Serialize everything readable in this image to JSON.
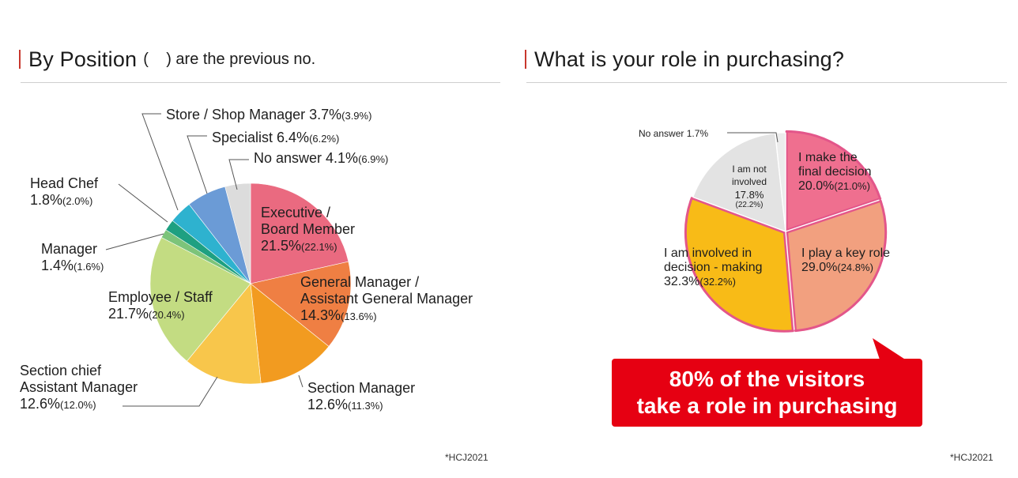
{
  "left": {
    "title": "By Position",
    "note_open": "(",
    "note_close": ") are the previous no.",
    "source": "*HCJ2021",
    "chart_data": {
      "type": "pie",
      "title": "By Position",
      "unit": "%",
      "slices": [
        {
          "label_lines": [
            "Executive /",
            "Board Member"
          ],
          "value": 21.5,
          "previous": 22.1,
          "value_text": "21.5%",
          "prev_text": "(22.1%)",
          "color": "#ea6a80"
        },
        {
          "label_lines": [
            "General Manager /",
            "Assistant General Manager"
          ],
          "value": 14.3,
          "previous": 13.6,
          "value_text": "14.3%",
          "prev_text": "(13.6%)",
          "color": "#ef7f43"
        },
        {
          "label_lines": [
            "Section Manager"
          ],
          "value": 12.6,
          "previous": 11.3,
          "value_text": "12.6%",
          "prev_text": "(11.3%)",
          "color": "#f29b20"
        },
        {
          "label_lines": [
            "Section chief",
            "Assistant Manager"
          ],
          "value": 12.6,
          "previous": 12.0,
          "value_text": "12.6%",
          "prev_text": "(12.0%)",
          "color": "#f8c64b"
        },
        {
          "label_lines": [
            "Employee / Staff"
          ],
          "value": 21.7,
          "previous": 20.4,
          "value_text": "21.7%",
          "prev_text": "(20.4%)",
          "color": "#c3dc82"
        },
        {
          "label_lines": [
            "Manager"
          ],
          "value": 1.4,
          "previous": 1.6,
          "value_text": "1.4%",
          "prev_text": "(1.6%)",
          "color": "#7cc47a"
        },
        {
          "label_lines": [
            "Head Chef"
          ],
          "value": 1.8,
          "previous": 2.0,
          "value_text": "1.8%",
          "prev_text": "(2.0%)",
          "color": "#1ea081"
        },
        {
          "label_lines": [
            "Store / Shop Manager"
          ],
          "value": 3.7,
          "previous": 3.9,
          "value_text": "3.7%",
          "prev_text": "(3.9%)",
          "color": "#2eb2cf"
        },
        {
          "label_lines": [
            "Specialist"
          ],
          "value": 6.4,
          "previous": 6.2,
          "value_text": "6.4%",
          "prev_text": "(6.2%)",
          "color": "#6b9bd6"
        },
        {
          "label_lines": [
            "No answer"
          ],
          "value": 4.1,
          "previous": 6.9,
          "value_text": "4.1%",
          "prev_text": "(6.9%)",
          "color": "#dcdcdc"
        }
      ]
    }
  },
  "right": {
    "title": "What is your role in purchasing?",
    "source": "*HCJ2021",
    "banner_line1": "80% of the visitors",
    "banner_line2": "take a role in purchasing",
    "chart_data": {
      "type": "pie",
      "title": "What is your role in purchasing?",
      "unit": "%",
      "slices": [
        {
          "label_lines": [
            "I make the",
            "final decision"
          ],
          "value": 20.0,
          "previous": 21.0,
          "value_text": "20.0%",
          "prev_text": "(21.0%)",
          "color": "#ef6f8f",
          "highlight": true
        },
        {
          "label_lines": [
            "I play a key role"
          ],
          "value": 29.0,
          "previous": 24.8,
          "value_text": "29.0%",
          "prev_text": "(24.8%)",
          "color": "#f2a07f",
          "highlight": true
        },
        {
          "label_lines": [
            "I am involved in",
            "decision - making"
          ],
          "value": 32.3,
          "previous": 32.2,
          "value_text": "32.3%",
          "prev_text": "(32.2%)",
          "color": "#f8bb17",
          "highlight": true
        },
        {
          "label_lines": [
            "I am not",
            "involved"
          ],
          "value": 17.8,
          "previous": 22.2,
          "value_text": "17.8%",
          "prev_text": "(22.2%)",
          "color": "#e3e3e3",
          "highlight": false
        },
        {
          "label_lines": [
            "No answer"
          ],
          "value": 1.7,
          "previous": null,
          "value_text": "1.7%",
          "prev_text": "",
          "color": "#ececec",
          "highlight": false
        }
      ],
      "highlight_color": "#e3568a"
    }
  }
}
